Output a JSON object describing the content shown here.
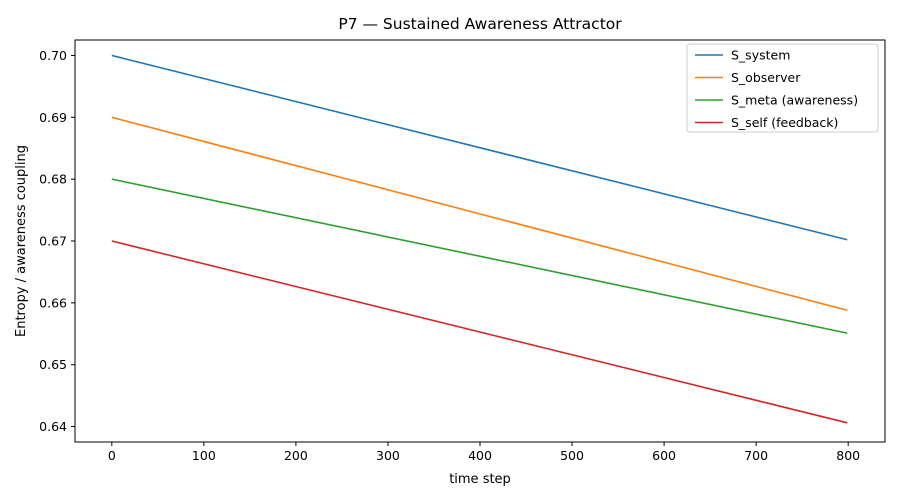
{
  "chart_data": {
    "type": "line",
    "title": "P7 — Sustained Awareness Attractor",
    "xlabel": "time step",
    "ylabel": "Entropy / awareness coupling",
    "xlim": [
      -40,
      840
    ],
    "ylim": [
      0.6375,
      0.7025
    ],
    "xticks": [
      0,
      100,
      200,
      300,
      400,
      500,
      600,
      700,
      800
    ],
    "xtick_labels": [
      "0",
      "100",
      "200",
      "300",
      "400",
      "500",
      "600",
      "700",
      "800"
    ],
    "yticks": [
      0.64,
      0.65,
      0.66,
      0.67,
      0.68,
      0.69,
      0.7
    ],
    "ytick_labels": [
      "0.64",
      "0.65",
      "0.66",
      "0.67",
      "0.68",
      "0.69",
      "0.70"
    ],
    "grid": false,
    "legend_position": "top-right",
    "series": [
      {
        "name": "S_system",
        "color": "#1f77b4",
        "x": [
          0,
          799
        ],
        "values": [
          0.7,
          0.6702
        ]
      },
      {
        "name": "S_observer",
        "color": "#ff7f0e",
        "x": [
          0,
          799
        ],
        "values": [
          0.69,
          0.6588
        ]
      },
      {
        "name": "S_meta (awareness)",
        "color": "#2ca02c",
        "x": [
          0,
          799
        ],
        "values": [
          0.68,
          0.6551
        ]
      },
      {
        "name": "S_self (feedback)",
        "color": "#d62728",
        "x": [
          0,
          799
        ],
        "values": [
          0.67,
          0.6406
        ]
      }
    ]
  }
}
